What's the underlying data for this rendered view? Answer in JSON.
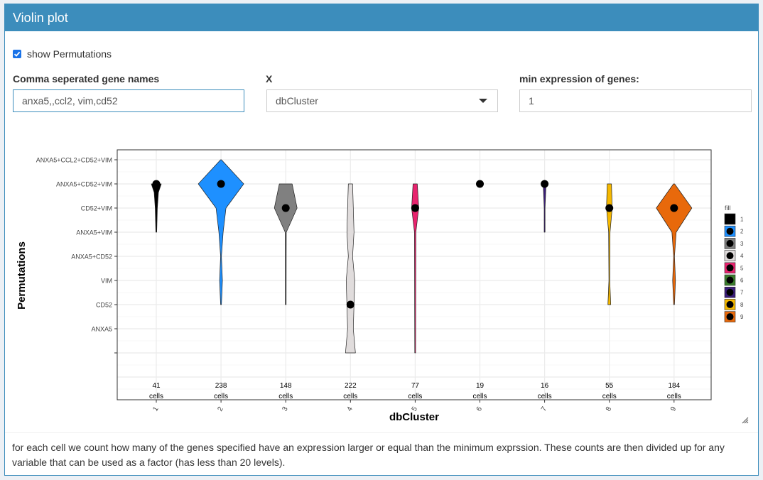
{
  "panel": {
    "title": "Violin plot"
  },
  "controls": {
    "show_permutations": {
      "label": "show Permutations",
      "checked": true
    },
    "genes": {
      "label": "Comma seperated gene names",
      "value": "anxa5,,ccl2, vim,cd52"
    },
    "x": {
      "label": "X",
      "value": "dbCluster"
    },
    "min_expr": {
      "label": "min expression of genes:",
      "value": "1"
    }
  },
  "chart_data": {
    "type": "violin",
    "xlabel": "dbCluster",
    "ylabel": "Permutations",
    "categories": [
      "1",
      "2",
      "3",
      "4",
      "5",
      "6",
      "7",
      "8",
      "9"
    ],
    "y_levels": [
      "ANXA5+CCL2+CD52+VIM",
      "ANXA5+CD52+VIM",
      "CD52+VIM",
      "ANXA5+VIM",
      "ANXA5+CD52",
      "VIM",
      "CD52",
      "ANXA5",
      ""
    ],
    "counts": [
      41,
      238,
      148,
      222,
      77,
      19,
      16,
      55,
      184
    ],
    "count_suffix": "cells",
    "median_level": [
      "ANXA5+CD52+VIM",
      "ANXA5+CD52+VIM",
      "CD52+VIM",
      "CD52",
      "CD52+VIM",
      "ANXA5+CD52+VIM",
      "ANXA5+CD52+VIM",
      "CD52+VIM",
      "CD52+VIM"
    ],
    "colors": [
      "#000000",
      "#1e90ff",
      "#808080",
      "#e0dcdc",
      "#e8236e",
      "#3a7d2c",
      "#3b1d7a",
      "#f5b800",
      "#e8690b"
    ],
    "legend": {
      "title": "fill",
      "entries": [
        "1",
        "2",
        "3",
        "4",
        "5",
        "6",
        "7",
        "8",
        "9"
      ],
      "position": "right"
    }
  },
  "footer": {
    "text": "for each cell we count how many of the genes specified have an expression larger or equal than the minimum exprssion. These counts are then divided up for any variable that can be used as a factor (has less than 20 levels)."
  }
}
